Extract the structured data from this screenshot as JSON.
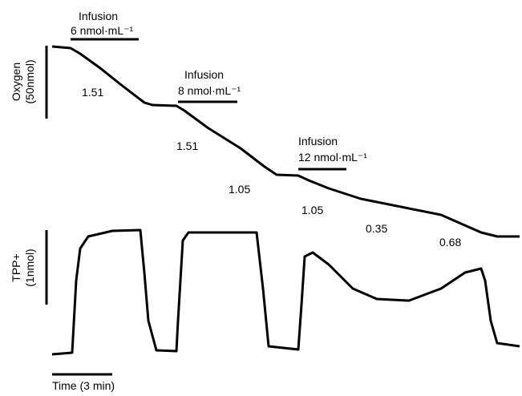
{
  "figure": {
    "infusions": [
      {
        "title": "Infusion",
        "dose": "6 nmol·mL⁻¹"
      },
      {
        "title": "Infusion",
        "dose": "8 nmol·mL⁻¹"
      },
      {
        "title": "Infusion",
        "dose": "12 nmol·mL⁻¹"
      }
    ],
    "rates": [
      "1.51",
      "1.51",
      "1.05",
      "1.05",
      "0.35",
      "0.68"
    ],
    "oxygen_scale": {
      "label": "Oxygen",
      "unit": "(50nmol)"
    },
    "tpp_scale": {
      "label": "TPP+",
      "unit": "(1nmol)"
    },
    "time_scale": "Time (3 min)"
  }
}
